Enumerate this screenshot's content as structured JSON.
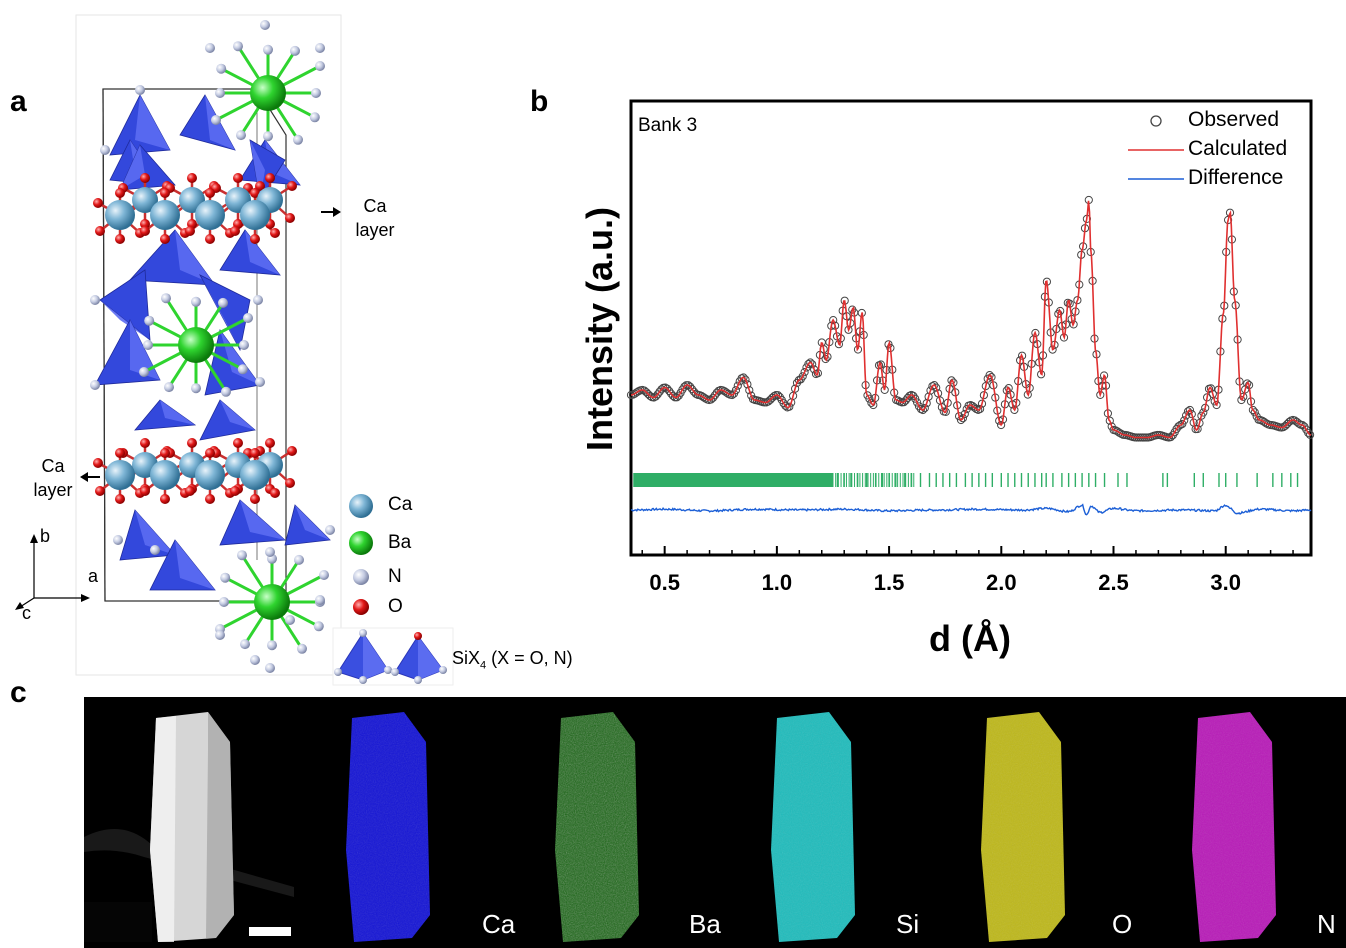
{
  "panels": {
    "a": {
      "letter": "a",
      "ca_layer_top_1": "Ca",
      "ca_layer_top_2": "layer",
      "ca_layer_bottom_1": "Ca",
      "ca_layer_bottom_2": "layer",
      "axis_b": "b",
      "axis_a": "a",
      "axis_c": "c",
      "legend": [
        {
          "label": "Ca",
          "color": "#5b9ec2"
        },
        {
          "label": "Ba",
          "color": "#22c322"
        },
        {
          "label": "N",
          "color": "#b9c3dc"
        },
        {
          "label": "O",
          "color": "#e01414"
        }
      ],
      "six_label_main": "SiX",
      "six_label_sub": "4",
      "six_label_rest": " (X = O, N)"
    },
    "b": {
      "letter": "b",
      "bank_label": "Bank 3",
      "legend": [
        {
          "label": "Observed",
          "color": "#444444"
        },
        {
          "label": "Calculated",
          "color": "#e03030"
        },
        {
          "label": "Difference",
          "color": "#1c5fd6"
        }
      ],
      "bragg_color": "#2fae66"
    },
    "c": {
      "letter": "c",
      "maps": [
        {
          "label": "",
          "color": "#d9d9d9"
        },
        {
          "label": "Ca",
          "color": "#1414e0"
        },
        {
          "label": "Ba",
          "color": "#27b51e"
        },
        {
          "label": "Si",
          "color": "#20c6c6"
        },
        {
          "label": "O",
          "color": "#c8c21a"
        },
        {
          "label": "N",
          "color": "#c21ac2"
        }
      ]
    }
  },
  "chart_data": {
    "type": "line",
    "title": "",
    "xlabel": "d (Å)",
    "ylabel": "Intensity (a.u.)",
    "xlim": [
      0.35,
      3.38
    ],
    "x_ticks": [
      "0.5",
      "1.0",
      "1.5",
      "2.0",
      "2.5",
      "3.0"
    ],
    "x_tick_values": [
      0.5,
      1.0,
      1.5,
      2.0,
      2.5,
      3.0
    ],
    "yticks_shown": false,
    "legend_position": "top-right",
    "series": [
      {
        "name": "Calculated",
        "x": [
          0.35,
          0.4,
          0.45,
          0.5,
          0.55,
          0.6,
          0.65,
          0.7,
          0.75,
          0.8,
          0.85,
          0.9,
          0.95,
          1.0,
          1.05,
          1.1,
          1.15,
          1.18,
          1.2,
          1.22,
          1.25,
          1.28,
          1.3,
          1.32,
          1.34,
          1.36,
          1.38,
          1.4,
          1.43,
          1.46,
          1.48,
          1.5,
          1.53,
          1.56,
          1.6,
          1.65,
          1.7,
          1.75,
          1.78,
          1.82,
          1.86,
          1.9,
          1.95,
          2.0,
          2.03,
          2.06,
          2.09,
          2.12,
          2.15,
          2.18,
          2.2,
          2.23,
          2.26,
          2.28,
          2.3,
          2.32,
          2.34,
          2.36,
          2.38,
          2.39,
          2.4,
          2.42,
          2.44,
          2.46,
          2.48,
          2.5,
          2.55,
          2.6,
          2.65,
          2.7,
          2.75,
          2.8,
          2.84,
          2.87,
          2.9,
          2.93,
          2.96,
          2.99,
          3.01,
          3.02,
          3.04,
          3.07,
          3.1,
          3.12,
          3.15,
          3.2,
          3.25,
          3.3,
          3.34,
          3.38
        ],
        "y": [
          0.22,
          0.24,
          0.21,
          0.25,
          0.21,
          0.26,
          0.22,
          0.2,
          0.24,
          0.22,
          0.29,
          0.2,
          0.19,
          0.22,
          0.17,
          0.28,
          0.35,
          0.3,
          0.43,
          0.36,
          0.52,
          0.42,
          0.6,
          0.48,
          0.57,
          0.4,
          0.55,
          0.22,
          0.18,
          0.35,
          0.24,
          0.43,
          0.2,
          0.19,
          0.22,
          0.16,
          0.26,
          0.15,
          0.28,
          0.12,
          0.18,
          0.16,
          0.3,
          0.1,
          0.25,
          0.16,
          0.38,
          0.22,
          0.47,
          0.3,
          0.68,
          0.4,
          0.56,
          0.45,
          0.6,
          0.5,
          0.6,
          0.8,
          0.92,
          1.0,
          0.78,
          0.4,
          0.22,
          0.3,
          0.12,
          0.08,
          0.06,
          0.05,
          0.05,
          0.06,
          0.05,
          0.1,
          0.16,
          0.08,
          0.15,
          0.25,
          0.18,
          0.55,
          0.92,
          0.95,
          0.6,
          0.2,
          0.27,
          0.16,
          0.12,
          0.1,
          0.09,
          0.12,
          0.1,
          0.06
        ]
      },
      {
        "name": "Difference",
        "x": [
          0.35,
          0.5,
          0.7,
          0.9,
          1.1,
          1.3,
          1.5,
          1.7,
          1.9,
          2.1,
          2.2,
          2.3,
          2.36,
          2.38,
          2.4,
          2.44,
          2.5,
          2.6,
          2.8,
          2.95,
          3.0,
          3.02,
          3.05,
          3.15,
          3.3,
          3.38
        ],
        "y": [
          0.0,
          0.01,
          -0.01,
          0.01,
          0.0,
          0.01,
          -0.01,
          0.0,
          0.01,
          0.0,
          0.02,
          -0.02,
          0.06,
          -0.06,
          0.05,
          -0.03,
          0.02,
          -0.01,
          0.0,
          -0.01,
          0.06,
          0.02,
          -0.04,
          0.01,
          -0.01,
          0.0
        ]
      }
    ]
  }
}
